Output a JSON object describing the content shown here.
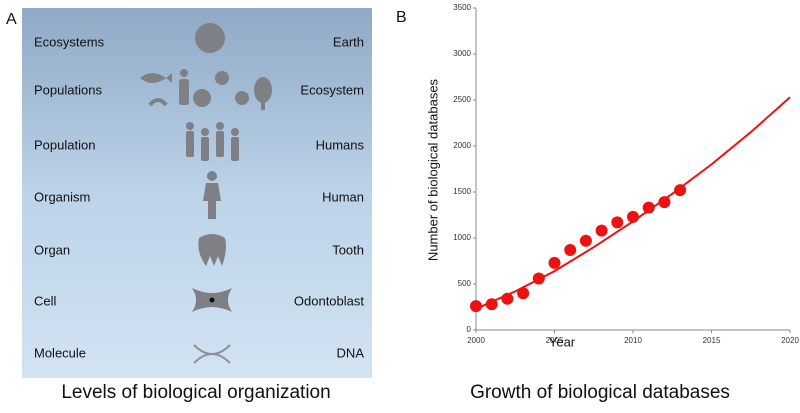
{
  "panel_a": {
    "label": "A",
    "caption": "Levels of biological organization",
    "rows": [
      {
        "level": "Ecosystems",
        "example": "Earth"
      },
      {
        "level": "Populations",
        "example": "Ecosystem"
      },
      {
        "level": "Population",
        "example": "Humans"
      },
      {
        "level": "Organism",
        "example": "Human"
      },
      {
        "level": "Organ",
        "example": "Tooth"
      },
      {
        "level": "Cell",
        "example": "Odontoblast"
      },
      {
        "level": "Molecule",
        "example": "DNA"
      }
    ]
  },
  "chart_data": {
    "type": "scatter",
    "panel_label": "B",
    "title": "Growth of biological databases",
    "x_label": "Year",
    "y_label": "Number of biological databases",
    "x": [
      2000,
      2001,
      2002,
      2003,
      2004,
      2005,
      2006,
      2007,
      2008,
      2009,
      2010,
      2011,
      2012,
      2013
    ],
    "series": [
      {
        "color": "#ee1111",
        "values": [
          260,
          280,
          340,
          400,
          560,
          730,
          870,
          970,
          1080,
          1170,
          1230,
          1330,
          1390,
          1520
        ]
      }
    ],
    "trend": {
      "color": "#ee1111",
      "x": [
        2000,
        2002.5,
        2005,
        2007.5,
        2010,
        2012.5,
        2015,
        2017.5,
        2020
      ],
      "values": [
        230,
        420,
        640,
        900,
        1180,
        1480,
        1800,
        2150,
        2530
      ]
    },
    "xlim": [
      2000,
      2020
    ],
    "xticks": [
      2000,
      2005,
      2010,
      2015,
      2020
    ],
    "ylim": [
      0,
      3500
    ],
    "yticks": [
      0,
      500,
      1000,
      1500,
      2000,
      2500,
      3000,
      3500
    ]
  }
}
